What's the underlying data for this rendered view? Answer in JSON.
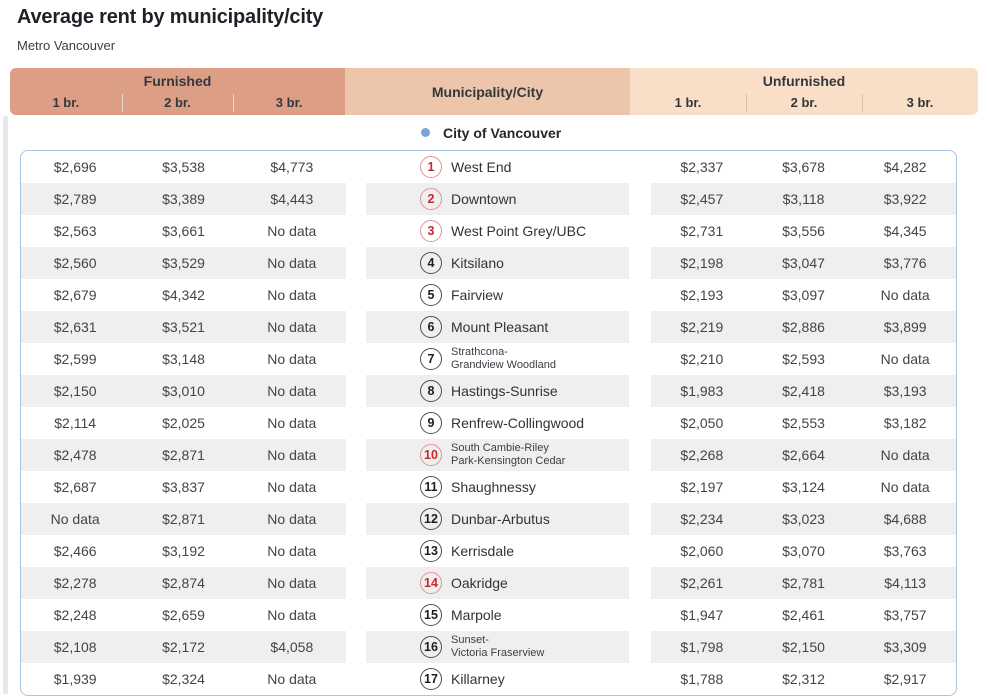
{
  "page": {
    "title": "Average rent by municipality/city",
    "subtitle": "Metro Vancouver"
  },
  "header": {
    "furnished_label": "Furnished",
    "unfurnished_label": "Unfurnished",
    "municipality_label": "Municipality/City",
    "furnished_sub_columns": [
      "1 br.",
      "2 br.",
      "3 br."
    ],
    "unfurnished_sub_columns": [
      "1 br.",
      "2 br.",
      "3 br."
    ]
  },
  "group_row": {
    "label": "City of Vancouver",
    "marker": "blue-dot"
  },
  "colors": {
    "furnished_header_bg": "#dd9e86",
    "municipality_header_bg": "#edc5ab",
    "unfurnished_header_bg": "#fadfc8",
    "row_stripe": "#efeff0",
    "table_border_blue": "#a6c6e5",
    "rank_red": "#c9282d",
    "rank_dark": "#1e1e1e",
    "vancouver_dot_blue": "#7da3d8"
  },
  "chart_data": {
    "type": "table",
    "title": "Average rent by municipality/city",
    "subtitle": "Metro Vancouver",
    "column_groups": [
      "Furnished",
      "Municipality/City",
      "Unfurnished"
    ],
    "sub_columns": [
      "1 br.",
      "2 br.",
      "3 br."
    ],
    "section_label": "City of Vancouver",
    "rows": [
      {
        "rank": "1",
        "rank_color": "red",
        "name": "West End",
        "name2": "",
        "furnished": [
          "$2,696",
          "$3,538",
          "$4,773"
        ],
        "unfurnished": [
          "$2,337",
          "$3,678",
          "$4,282"
        ]
      },
      {
        "rank": "2",
        "rank_color": "red",
        "name": "Downtown",
        "name2": "",
        "furnished": [
          "$2,789",
          "$3,389",
          "$4,443"
        ],
        "unfurnished": [
          "$2,457",
          "$3,118",
          "$3,922"
        ]
      },
      {
        "rank": "3",
        "rank_color": "red",
        "name": "West Point Grey/UBC",
        "name2": "",
        "furnished": [
          "$2,563",
          "$3,661",
          "No data"
        ],
        "unfurnished": [
          "$2,731",
          "$3,556",
          "$4,345"
        ]
      },
      {
        "rank": "4",
        "rank_color": "dark",
        "name": "Kitsilano",
        "name2": "",
        "furnished": [
          "$2,560",
          "$3,529",
          "No data"
        ],
        "unfurnished": [
          "$2,198",
          "$3,047",
          "$3,776"
        ]
      },
      {
        "rank": "5",
        "rank_color": "dark",
        "name": "Fairview",
        "name2": "",
        "furnished": [
          "$2,679",
          "$4,342",
          "No data"
        ],
        "unfurnished": [
          "$2,193",
          "$3,097",
          "No data"
        ]
      },
      {
        "rank": "6",
        "rank_color": "dark",
        "name": "Mount Pleasant",
        "name2": "",
        "furnished": [
          "$2,631",
          "$3,521",
          "No data"
        ],
        "unfurnished": [
          "$2,219",
          "$2,886",
          "$3,899"
        ]
      },
      {
        "rank": "7",
        "rank_color": "dark",
        "name": "Strathcona-",
        "name2": "Grandview Woodland",
        "furnished": [
          "$2,599",
          "$3,148",
          "No data"
        ],
        "unfurnished": [
          "$2,210",
          "$2,593",
          "No data"
        ]
      },
      {
        "rank": "8",
        "rank_color": "dark",
        "name": "Hastings-Sunrise",
        "name2": "",
        "furnished": [
          "$2,150",
          "$3,010",
          "No data"
        ],
        "unfurnished": [
          "$1,983",
          "$2,418",
          "$3,193"
        ]
      },
      {
        "rank": "9",
        "rank_color": "dark",
        "name": "Renfrew-Collingwood",
        "name2": "",
        "furnished": [
          "$2,114",
          "$2,025",
          "No data"
        ],
        "unfurnished": [
          "$2,050",
          "$2,553",
          "$3,182"
        ]
      },
      {
        "rank": "10",
        "rank_color": "red",
        "name": "South Cambie-Riley",
        "name2": "Park-Kensington Cedar",
        "furnished": [
          "$2,478",
          "$2,871",
          "No data"
        ],
        "unfurnished": [
          "$2,268",
          "$2,664",
          "No data"
        ]
      },
      {
        "rank": "11",
        "rank_color": "dark",
        "name": "Shaughnessy",
        "name2": "",
        "furnished": [
          "$2,687",
          "$3,837",
          "No data"
        ],
        "unfurnished": [
          "$2,197",
          "$3,124",
          "No data"
        ]
      },
      {
        "rank": "12",
        "rank_color": "dark",
        "name": "Dunbar-Arbutus",
        "name2": "",
        "furnished": [
          "No data",
          "$2,871",
          "No data"
        ],
        "unfurnished": [
          "$2,234",
          "$3,023",
          "$4,688"
        ]
      },
      {
        "rank": "13",
        "rank_color": "dark",
        "name": "Kerrisdale",
        "name2": "",
        "furnished": [
          "$2,466",
          "$3,192",
          "No data"
        ],
        "unfurnished": [
          "$2,060",
          "$3,070",
          "$3,763"
        ]
      },
      {
        "rank": "14",
        "rank_color": "red",
        "name": "Oakridge",
        "name2": "",
        "furnished": [
          "$2,278",
          "$2,874",
          "No data"
        ],
        "unfurnished": [
          "$2,261",
          "$2,781",
          "$4,113"
        ]
      },
      {
        "rank": "15",
        "rank_color": "dark",
        "name": "Marpole",
        "name2": "",
        "furnished": [
          "$2,248",
          "$2,659",
          "No data"
        ],
        "unfurnished": [
          "$1,947",
          "$2,461",
          "$3,757"
        ]
      },
      {
        "rank": "16",
        "rank_color": "dark",
        "name": "Sunset-",
        "name2": "Victoria Fraserview",
        "furnished": [
          "$2,108",
          "$2,172",
          "$4,058"
        ],
        "unfurnished": [
          "$1,798",
          "$2,150",
          "$3,309"
        ]
      },
      {
        "rank": "17",
        "rank_color": "dark",
        "name": "Killarney",
        "name2": "",
        "furnished": [
          "$1,939",
          "$2,324",
          "No data"
        ],
        "unfurnished": [
          "$1,788",
          "$2,312",
          "$2,917"
        ]
      }
    ]
  }
}
